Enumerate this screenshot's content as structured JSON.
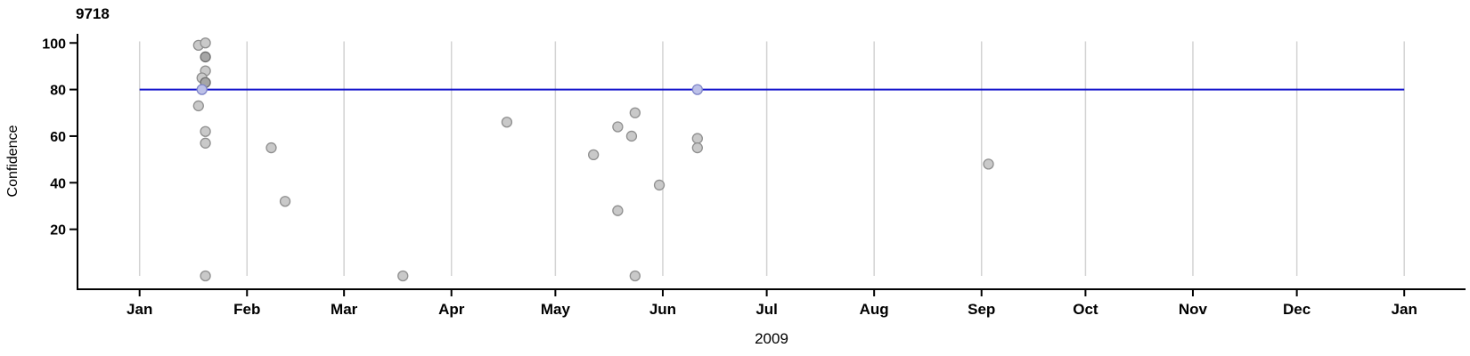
{
  "chart_data": {
    "type": "scatter",
    "title": "9718",
    "xlabel": "2009",
    "ylabel": "Confidence",
    "x_axis": {
      "type": "date",
      "start": "2009-01-01",
      "end": "2010-01-01",
      "tick_dates": [
        "2009-01-01",
        "2009-02-01",
        "2009-03-01",
        "2009-04-01",
        "2009-05-01",
        "2009-06-01",
        "2009-07-01",
        "2009-08-01",
        "2009-09-01",
        "2009-10-01",
        "2009-11-01",
        "2009-12-01",
        "2010-01-01"
      ],
      "tick_labels": [
        "Jan",
        "Feb",
        "Mar",
        "Apr",
        "May",
        "Jun",
        "Jul",
        "Aug",
        "Sep",
        "Oct",
        "Nov",
        "Dec",
        "Jan"
      ]
    },
    "y_axis": {
      "ticks": [
        20,
        40,
        60,
        80,
        100
      ],
      "tick_labels": [
        "20",
        "40",
        "60",
        "80",
        "100"
      ],
      "range": [
        0,
        100
      ]
    },
    "grid": "vertical month gridlines only",
    "legend": "none",
    "reference_line": {
      "value": 80,
      "from": "2009-01-01",
      "to": "2010-01-01",
      "color": "#1111cc"
    },
    "points": [
      {
        "date": "2009-01-18",
        "value": 99,
        "style": "normal"
      },
      {
        "date": "2009-01-20",
        "value": 100,
        "style": "normal"
      },
      {
        "date": "2009-01-20",
        "value": 94,
        "style": "dark"
      },
      {
        "date": "2009-01-20",
        "value": 88,
        "style": "normal"
      },
      {
        "date": "2009-01-19",
        "value": 85,
        "style": "normal"
      },
      {
        "date": "2009-01-20",
        "value": 83,
        "style": "dark"
      },
      {
        "date": "2009-01-19",
        "value": 80,
        "style": "highlight"
      },
      {
        "date": "2009-01-18",
        "value": 73,
        "style": "normal"
      },
      {
        "date": "2009-01-20",
        "value": 62,
        "style": "normal"
      },
      {
        "date": "2009-01-20",
        "value": 57,
        "style": "normal"
      },
      {
        "date": "2009-01-20",
        "value": 0,
        "style": "normal"
      },
      {
        "date": "2009-02-08",
        "value": 55,
        "style": "normal"
      },
      {
        "date": "2009-02-12",
        "value": 32,
        "style": "normal"
      },
      {
        "date": "2009-03-18",
        "value": 0,
        "style": "normal"
      },
      {
        "date": "2009-04-17",
        "value": 66,
        "style": "normal"
      },
      {
        "date": "2009-05-12",
        "value": 52,
        "style": "normal"
      },
      {
        "date": "2009-05-19",
        "value": 64,
        "style": "normal"
      },
      {
        "date": "2009-05-19",
        "value": 28,
        "style": "normal"
      },
      {
        "date": "2009-05-23",
        "value": 60,
        "style": "normal"
      },
      {
        "date": "2009-05-24",
        "value": 70,
        "style": "normal"
      },
      {
        "date": "2009-05-24",
        "value": 0,
        "style": "normal"
      },
      {
        "date": "2009-05-31",
        "value": 39,
        "style": "normal"
      },
      {
        "date": "2009-06-11",
        "value": 80,
        "style": "highlight"
      },
      {
        "date": "2009-06-11",
        "value": 59,
        "style": "normal"
      },
      {
        "date": "2009-06-11",
        "value": 55,
        "style": "normal"
      },
      {
        "date": "2009-09-03",
        "value": 48,
        "style": "normal"
      }
    ],
    "colors": {
      "axis": "#000000",
      "gridline": "#d3d3d3",
      "reference_line": "#1111cc",
      "marker_fill": "#c9c9c9",
      "marker_stroke": "#8f8f8f",
      "marker_dark_fill": "#a6a6a6",
      "marker_dark_stroke": "#6e6e6e",
      "marker_highlight_fill": "#bdc1e8",
      "marker_highlight_stroke": "#7f85c8"
    }
  }
}
